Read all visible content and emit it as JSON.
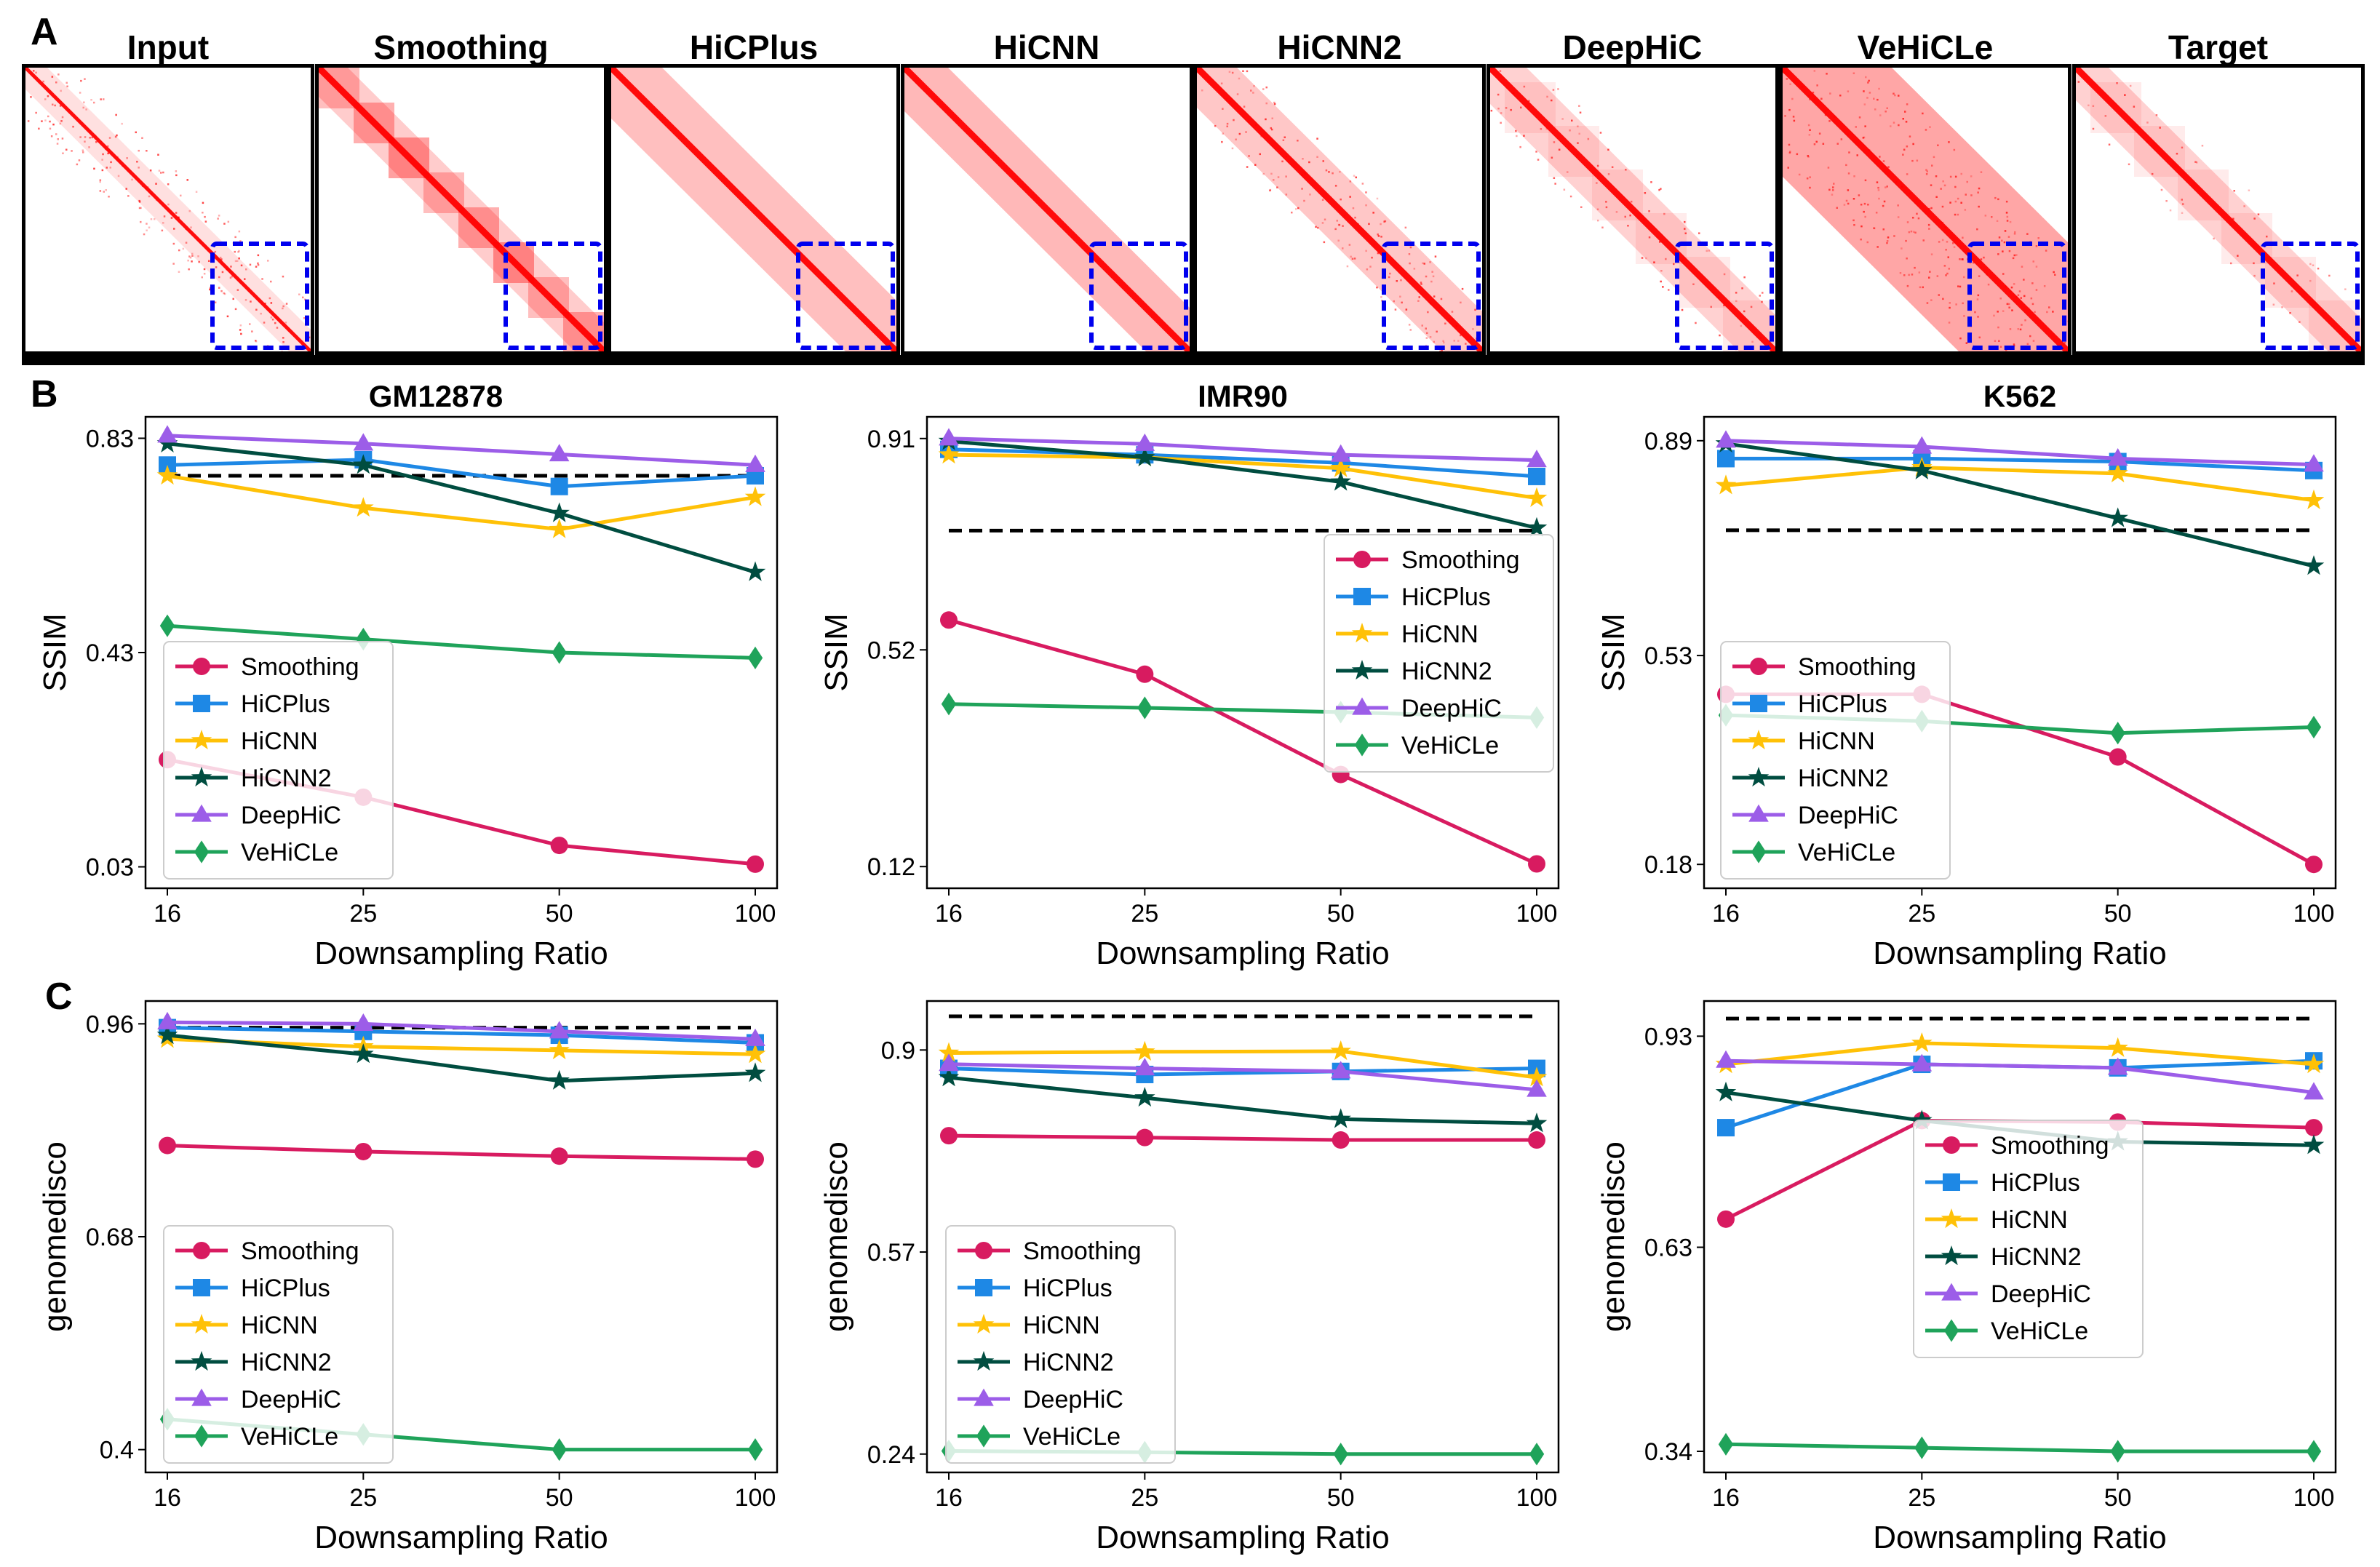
{
  "panel_labels": {
    "a": "A",
    "b": "B",
    "c": "C"
  },
  "heatmaps": {
    "titles": [
      "Input",
      "Smoothing",
      "HiCPlus",
      "HiCNN",
      "HiCNN2",
      "DeepHiC",
      "VeHiCLe",
      "Target"
    ],
    "base_color": "#ff0000",
    "box_color": "#0000ee"
  },
  "methods": [
    {
      "name": "Smoothing",
      "color": "#d81b60",
      "marker": "circle"
    },
    {
      "name": "HiCPlus",
      "color": "#1e88e5",
      "marker": "square"
    },
    {
      "name": "HiCNN",
      "color": "#ffc107",
      "marker": "star"
    },
    {
      "name": "HiCNN2",
      "color": "#004d40",
      "marker": "star"
    },
    {
      "name": "DeepHiC",
      "color": "#9c5de8",
      "marker": "triangle"
    },
    {
      "name": "VeHiCLe",
      "color": "#1fa35a",
      "marker": "diamond"
    }
  ],
  "chart_data": [
    {
      "id": "b-gm12878",
      "type": "line",
      "title": "GM12878",
      "xlabel": "Downsampling Ratio",
      "ylabel": "SSIM",
      "categories": [
        "16",
        "25",
        "50",
        "100"
      ],
      "yticks": [
        "0.03",
        "0.43",
        "0.83"
      ],
      "ylim": [
        -0.01,
        0.87
      ],
      "baseline": 0.76,
      "legend": "lower-left",
      "series": [
        {
          "name": "Smoothing",
          "values": [
            0.23,
            0.16,
            0.07,
            0.035
          ]
        },
        {
          "name": "HiCPlus",
          "values": [
            0.78,
            0.79,
            0.74,
            0.76
          ]
        },
        {
          "name": "HiCNN",
          "values": [
            0.76,
            0.7,
            0.66,
            0.72
          ]
        },
        {
          "name": "HiCNN2",
          "values": [
            0.82,
            0.78,
            0.69,
            0.58
          ]
        },
        {
          "name": "DeepHiC",
          "values": [
            0.835,
            0.82,
            0.8,
            0.78
          ]
        },
        {
          "name": "VeHiCLe",
          "values": [
            0.48,
            0.455,
            0.43,
            0.42
          ]
        }
      ]
    },
    {
      "id": "b-imr90",
      "type": "line",
      "title": "IMR90",
      "xlabel": "Downsampling Ratio",
      "ylabel": "SSIM",
      "categories": [
        "16",
        "25",
        "50",
        "100"
      ],
      "yticks": [
        "0.12",
        "0.52",
        "0.91"
      ],
      "ylim": [
        0.08,
        0.95
      ],
      "baseline": 0.74,
      "legend": "middle-right",
      "series": [
        {
          "name": "Smoothing",
          "values": [
            0.575,
            0.475,
            0.29,
            0.125
          ]
        },
        {
          "name": "HiCPlus",
          "values": [
            0.89,
            0.88,
            0.865,
            0.84
          ]
        },
        {
          "name": "HiCNN",
          "values": [
            0.88,
            0.875,
            0.855,
            0.8
          ]
        },
        {
          "name": "HiCNN2",
          "values": [
            0.905,
            0.875,
            0.83,
            0.745
          ]
        },
        {
          "name": "DeepHiC",
          "values": [
            0.91,
            0.9,
            0.88,
            0.87
          ]
        },
        {
          "name": "VeHiCLe",
          "values": [
            0.42,
            0.413,
            0.405,
            0.395
          ]
        }
      ]
    },
    {
      "id": "b-k562",
      "type": "line",
      "title": "K562",
      "xlabel": "Downsampling Ratio",
      "ylabel": "SSIM",
      "categories": [
        "16",
        "25",
        "50",
        "100"
      ],
      "yticks": [
        "0.18",
        "0.53",
        "0.89"
      ],
      "ylim": [
        0.14,
        0.93
      ],
      "baseline": 0.74,
      "legend": "lower-left",
      "series": [
        {
          "name": "Smoothing",
          "values": [
            0.465,
            0.465,
            0.36,
            0.18
          ]
        },
        {
          "name": "HiCPlus",
          "values": [
            0.86,
            0.86,
            0.855,
            0.84
          ]
        },
        {
          "name": "HiCNN",
          "values": [
            0.815,
            0.845,
            0.835,
            0.79
          ]
        },
        {
          "name": "HiCNN2",
          "values": [
            0.885,
            0.84,
            0.76,
            0.68
          ]
        },
        {
          "name": "DeepHiC",
          "values": [
            0.89,
            0.88,
            0.86,
            0.85
          ]
        },
        {
          "name": "VeHiCLe",
          "values": [
            0.43,
            0.42,
            0.4,
            0.41
          ]
        }
      ]
    },
    {
      "id": "c-gm12878",
      "type": "line",
      "title": "",
      "xlabel": "Downsampling Ratio",
      "ylabel": "genomedisco",
      "categories": [
        "16",
        "25",
        "50",
        "100"
      ],
      "yticks": [
        "0.4",
        "0.68",
        "0.96"
      ],
      "ylim": [
        0.37,
        0.99
      ],
      "baseline": 0.955,
      "legend": "lower-left",
      "series": [
        {
          "name": "Smoothing",
          "values": [
            0.8,
            0.792,
            0.786,
            0.782
          ]
        },
        {
          "name": "HiCPlus",
          "values": [
            0.955,
            0.95,
            0.945,
            0.935
          ]
        },
        {
          "name": "HiCNN",
          "values": [
            0.94,
            0.93,
            0.925,
            0.92
          ]
        },
        {
          "name": "HiCNN2",
          "values": [
            0.945,
            0.92,
            0.885,
            0.895
          ]
        },
        {
          "name": "DeepHiC",
          "values": [
            0.962,
            0.96,
            0.95,
            0.94
          ]
        },
        {
          "name": "VeHiCLe",
          "values": [
            0.44,
            0.42,
            0.4,
            0.4
          ]
        }
      ]
    },
    {
      "id": "c-imr90",
      "type": "line",
      "title": "",
      "xlabel": "Downsampling Ratio",
      "ylabel": "genomedisco",
      "categories": [
        "16",
        "25",
        "50",
        "100"
      ],
      "yticks": [
        "0.24",
        "0.57",
        "0.9"
      ],
      "ylim": [
        0.21,
        0.98
      ],
      "baseline": 0.955,
      "legend": "lower-left",
      "series": [
        {
          "name": "Smoothing",
          "values": [
            0.76,
            0.757,
            0.753,
            0.753
          ]
        },
        {
          "name": "HiCPlus",
          "values": [
            0.87,
            0.86,
            0.865,
            0.87
          ]
        },
        {
          "name": "HiCNN",
          "values": [
            0.895,
            0.897,
            0.898,
            0.855
          ]
        },
        {
          "name": "HiCNN2",
          "values": [
            0.855,
            0.822,
            0.787,
            0.78
          ]
        },
        {
          "name": "DeepHiC",
          "values": [
            0.877,
            0.87,
            0.865,
            0.835
          ]
        },
        {
          "name": "VeHiCLe",
          "values": [
            0.245,
            0.243,
            0.24,
            0.24
          ]
        }
      ]
    },
    {
      "id": "c-k562",
      "type": "line",
      "title": "",
      "xlabel": "Downsampling Ratio",
      "ylabel": "genomedisco",
      "categories": [
        "16",
        "25",
        "50",
        "100"
      ],
      "yticks": [
        "0.34",
        "0.63",
        "0.93"
      ],
      "ylim": [
        0.31,
        0.98
      ],
      "baseline": 0.955,
      "legend": "middle-center",
      "series": [
        {
          "name": "Smoothing",
          "values": [
            0.67,
            0.81,
            0.808,
            0.8
          ]
        },
        {
          "name": "HiCPlus",
          "values": [
            0.8,
            0.89,
            0.885,
            0.895
          ]
        },
        {
          "name": "HiCNN",
          "values": [
            0.89,
            0.92,
            0.913,
            0.89
          ]
        },
        {
          "name": "HiCNN2",
          "values": [
            0.85,
            0.81,
            0.78,
            0.775
          ]
        },
        {
          "name": "DeepHiC",
          "values": [
            0.895,
            0.89,
            0.885,
            0.85
          ]
        },
        {
          "name": "VeHiCLe",
          "values": [
            0.35,
            0.345,
            0.34,
            0.34
          ]
        }
      ]
    }
  ]
}
